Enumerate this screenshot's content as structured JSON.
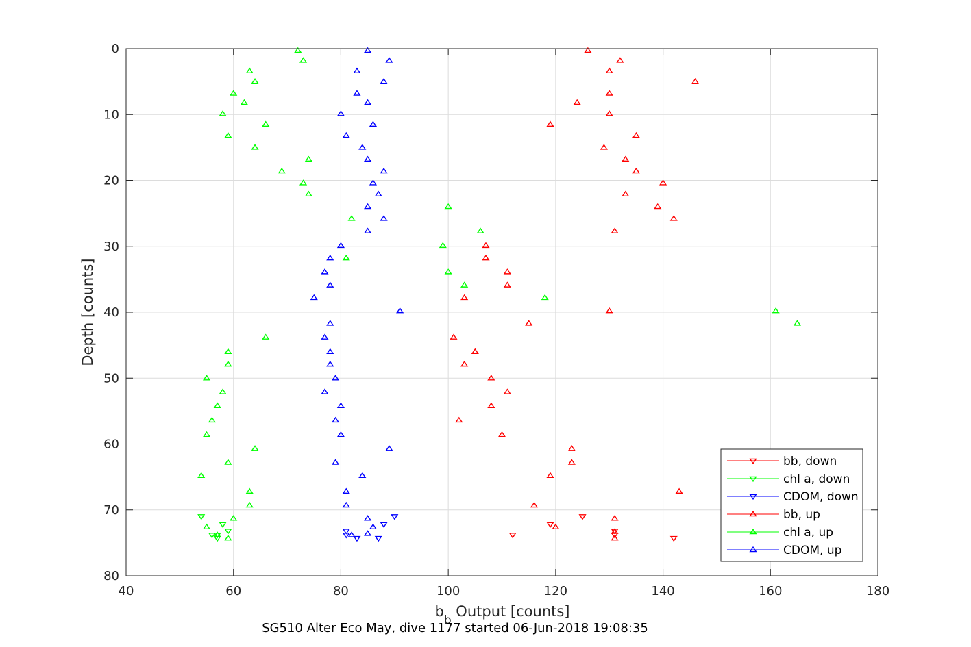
{
  "chart_data": {
    "type": "scatter",
    "title": "",
    "xlabel": "b_b Output [counts]",
    "xlabel_main": "b",
    "xlabel_sub": "b",
    "xlabel_rest": " Output [counts]",
    "ylabel": "Depth [counts]",
    "caption": "SG510 Alter Eco May, dive 1177 started 06-Jun-2018 19:08:35",
    "xlim": [
      40,
      180
    ],
    "ylim": [
      0,
      80
    ],
    "y_reversed": true,
    "grid": true,
    "legend_placement": "bottom-right",
    "xticks": [
      40,
      60,
      80,
      100,
      120,
      140,
      160,
      180
    ],
    "yticks": [
      0,
      10,
      20,
      30,
      40,
      50,
      60,
      70,
      80
    ],
    "series": [
      {
        "name": "bb, down",
        "color": "#ff0000",
        "marker": "triangle-down",
        "points": [
          [
            112,
            73.8
          ],
          [
            119,
            72.2
          ],
          [
            125,
            71
          ],
          [
            131,
            73.2
          ],
          [
            131,
            73.8
          ],
          [
            142,
            74.3
          ]
        ]
      },
      {
        "name": "chl a, down",
        "color": "#00ff00",
        "marker": "triangle-down",
        "points": [
          [
            54,
            71
          ],
          [
            56,
            73.8
          ],
          [
            57,
            73.8
          ],
          [
            57,
            74.3
          ],
          [
            58,
            72.2
          ],
          [
            59,
            73.2
          ]
        ]
      },
      {
        "name": "CDOM, down",
        "color": "#0000ff",
        "marker": "triangle-down",
        "points": [
          [
            81,
            73.2
          ],
          [
            81,
            73.8
          ],
          [
            83,
            74.3
          ],
          [
            87,
            74.3
          ],
          [
            88,
            72.2
          ],
          [
            90,
            71
          ]
        ]
      },
      {
        "name": "bb, up",
        "color": "#ff0000",
        "marker": "triangle-up",
        "points": [
          [
            126,
            0.3
          ],
          [
            132,
            1.8
          ],
          [
            130,
            3.4
          ],
          [
            146,
            5
          ],
          [
            130,
            6.8
          ],
          [
            124,
            8.2
          ],
          [
            130,
            9.9
          ],
          [
            119,
            11.5
          ],
          [
            135,
            13.2
          ],
          [
            129,
            15
          ],
          [
            133,
            16.8
          ],
          [
            135,
            18.6
          ],
          [
            140,
            20.4
          ],
          [
            133,
            22.1
          ],
          [
            139,
            24
          ],
          [
            142,
            25.8
          ],
          [
            131,
            27.7
          ],
          [
            107,
            29.9
          ],
          [
            107,
            31.8
          ],
          [
            111,
            33.9
          ],
          [
            111,
            35.9
          ],
          [
            103,
            37.8
          ],
          [
            130,
            39.8
          ],
          [
            115,
            41.7
          ],
          [
            101,
            43.8
          ],
          [
            105,
            46
          ],
          [
            103,
            47.9
          ],
          [
            108,
            50
          ],
          [
            111,
            52.1
          ],
          [
            108,
            54.2
          ],
          [
            102,
            56.4
          ],
          [
            110,
            58.6
          ],
          [
            123,
            60.7
          ],
          [
            123,
            62.8
          ],
          [
            119,
            64.8
          ],
          [
            143,
            67.2
          ],
          [
            116,
            69.3
          ],
          [
            131,
            71.3
          ],
          [
            120,
            72.6
          ],
          [
            131,
            73.3
          ],
          [
            131,
            74.3
          ]
        ]
      },
      {
        "name": "chl a, up",
        "color": "#00ff00",
        "marker": "triangle-up",
        "points": [
          [
            72,
            0.3
          ],
          [
            73,
            1.8
          ],
          [
            63,
            3.4
          ],
          [
            64,
            5
          ],
          [
            60,
            6.8
          ],
          [
            62,
            8.2
          ],
          [
            58,
            9.9
          ],
          [
            66,
            11.5
          ],
          [
            59,
            13.2
          ],
          [
            64,
            15
          ],
          [
            74,
            16.8
          ],
          [
            69,
            18.6
          ],
          [
            73,
            20.4
          ],
          [
            74,
            22.1
          ],
          [
            100,
            24
          ],
          [
            82,
            25.8
          ],
          [
            106,
            27.7
          ],
          [
            99,
            29.9
          ],
          [
            81,
            31.8
          ],
          [
            100,
            33.9
          ],
          [
            103,
            35.9
          ],
          [
            118,
            37.8
          ],
          [
            161,
            39.8
          ],
          [
            165,
            41.7
          ],
          [
            66,
            43.8
          ],
          [
            59,
            46
          ],
          [
            59,
            47.9
          ],
          [
            55,
            50
          ],
          [
            58,
            52.1
          ],
          [
            57,
            54.2
          ],
          [
            56,
            56.4
          ],
          [
            55,
            58.6
          ],
          [
            64,
            60.7
          ],
          [
            59,
            62.8
          ],
          [
            54,
            64.8
          ],
          [
            63,
            67.2
          ],
          [
            63,
            69.3
          ],
          [
            60,
            71.3
          ],
          [
            55,
            72.6
          ],
          [
            57,
            73.8
          ],
          [
            59,
            74.3
          ]
        ]
      },
      {
        "name": "CDOM, up",
        "color": "#0000ff",
        "marker": "triangle-up",
        "points": [
          [
            85,
            0.3
          ],
          [
            89,
            1.8
          ],
          [
            83,
            3.4
          ],
          [
            88,
            5
          ],
          [
            83,
            6.8
          ],
          [
            85,
            8.2
          ],
          [
            80,
            9.9
          ],
          [
            86,
            11.5
          ],
          [
            81,
            13.2
          ],
          [
            84,
            15
          ],
          [
            85,
            16.8
          ],
          [
            88,
            18.6
          ],
          [
            86,
            20.4
          ],
          [
            87,
            22.1
          ],
          [
            85,
            24
          ],
          [
            88,
            25.8
          ],
          [
            85,
            27.7
          ],
          [
            80,
            29.9
          ],
          [
            78,
            31.8
          ],
          [
            77,
            33.9
          ],
          [
            78,
            35.9
          ],
          [
            75,
            37.8
          ],
          [
            91,
            39.8
          ],
          [
            78,
            41.7
          ],
          [
            77,
            43.8
          ],
          [
            78,
            46
          ],
          [
            78,
            47.9
          ],
          [
            79,
            50
          ],
          [
            77,
            52.1
          ],
          [
            80,
            54.2
          ],
          [
            79,
            56.4
          ],
          [
            80,
            58.6
          ],
          [
            89,
            60.7
          ],
          [
            79,
            62.8
          ],
          [
            84,
            64.8
          ],
          [
            81,
            67.2
          ],
          [
            81,
            69.3
          ],
          [
            85,
            71.3
          ],
          [
            86,
            72.6
          ],
          [
            85,
            73.6
          ],
          [
            82,
            73.8
          ]
        ]
      }
    ]
  }
}
